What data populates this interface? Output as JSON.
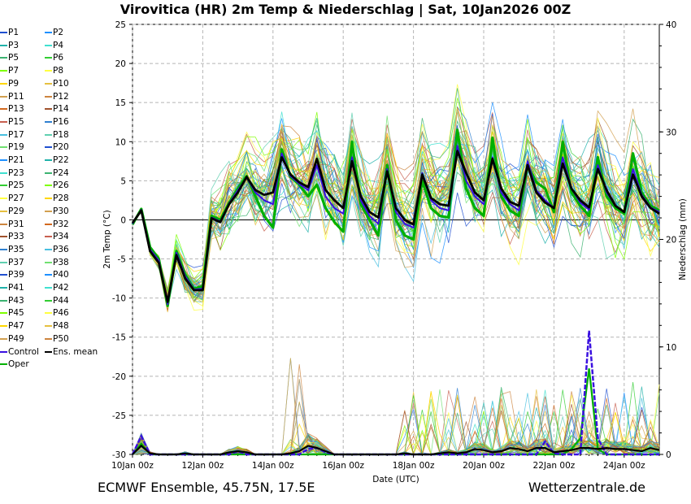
{
  "title": "Virovitica  (HR)  2m Temp & Niederschlag | Sat, 10Jan2026 00Z",
  "footer": {
    "left": "ECMWF Ensemble, 45.75N, 17.5E",
    "right": "Wetterzentrale.de"
  },
  "chart_data": {
    "type": "line",
    "title": "Virovitica  (HR)  2m Temp & Niederschlag | Sat, 10Jan2026 00Z",
    "xlabel": "Date (UTC)",
    "ylabel": "2m Temp (°C)",
    "y2label": "Niederschlag (mm)",
    "ylim": [
      -30,
      25
    ],
    "y2lim": [
      0,
      40
    ],
    "xlim": [
      0,
      360
    ],
    "yticks": [
      "25",
      "20",
      "15",
      "10",
      "5",
      "0",
      "-5",
      "-10",
      "-15",
      "-20",
      "-25",
      "-30"
    ],
    "y2ticks": [
      "40",
      "30",
      "20",
      "10",
      "0"
    ],
    "xticks": [
      "10Jan 00z",
      "12Jan 00z",
      "14Jan 00z",
      "16Jan 00z",
      "18Jan 00z",
      "20Jan 00z",
      "22Jan 00z",
      "24Jan 00z"
    ],
    "x": [
      0,
      6,
      12,
      18,
      24,
      30,
      36,
      42,
      48,
      54,
      60,
      66,
      72,
      78,
      84,
      90,
      96,
      102,
      108,
      114,
      120,
      126,
      132,
      138,
      144,
      150,
      156,
      162,
      168,
      174,
      180,
      186,
      192,
      198,
      204,
      210,
      216,
      222,
      228,
      234,
      240,
      246,
      252,
      258,
      264,
      270,
      276,
      282,
      288,
      294,
      300,
      306,
      312,
      318,
      324,
      330,
      336,
      342,
      348,
      354,
      360
    ],
    "series": [
      {
        "name": "Ens. mean",
        "color": "#000000",
        "values": [
          -0.4,
          1.2,
          -4.0,
          -5.5,
          -10.5,
          -4.5,
          -7.5,
          -9.0,
          -9.0,
          0.2,
          -0.3,
          2.0,
          3.5,
          5.5,
          3.8,
          3.2,
          3.5,
          8.0,
          5.8,
          4.8,
          4.2,
          7.8,
          3.8,
          2.5,
          1.5,
          7.5,
          3.0,
          1.0,
          0.3,
          6.2,
          1.5,
          0.0,
          -0.6,
          5.8,
          2.8,
          2.0,
          1.8,
          8.8,
          6.0,
          3.5,
          2.5,
          7.8,
          4.0,
          2.3,
          1.8,
          7.0,
          3.5,
          2.2,
          1.5,
          7.2,
          4.0,
          2.5,
          1.6,
          6.5,
          3.8,
          1.8,
          1.0,
          5.8,
          3.0,
          1.5,
          0.8
        ]
      },
      {
        "name": "Oper",
        "color": "#00b000",
        "values": [
          -0.6,
          1.4,
          -3.5,
          -5.0,
          -11.0,
          -4.0,
          -7.0,
          -8.8,
          -8.5,
          0.5,
          0.0,
          2.2,
          4.0,
          5.6,
          3.0,
          0.5,
          -1.0,
          9.0,
          5.5,
          4.5,
          3.0,
          4.5,
          1.5,
          -0.3,
          -1.5,
          10.0,
          2.0,
          0.0,
          -2.0,
          7.0,
          0.0,
          -2.0,
          -2.5,
          5.0,
          1.5,
          0.5,
          0.3,
          11.5,
          4.0,
          1.5,
          0.5,
          10.5,
          3.0,
          1.2,
          0.5,
          7.0,
          4.8,
          4.0,
          1.0,
          10.0,
          3.5,
          1.8,
          0.5,
          8.0,
          3.0,
          1.5,
          0.8,
          8.5,
          3.5,
          1.8,
          1.2
        ]
      },
      {
        "name": "Control",
        "color": "#3a10e0",
        "values": [
          -0.5,
          1.3,
          -3.8,
          -5.2,
          -10.8,
          -4.2,
          -7.2,
          -8.9,
          -8.8,
          0.3,
          -0.2,
          2.1,
          3.8,
          5.4,
          3.5,
          2.5,
          2.0,
          8.5,
          5.6,
          4.6,
          3.8,
          7.0,
          3.0,
          1.5,
          0.8,
          8.0,
          2.5,
          0.5,
          -0.5,
          6.5,
          1.0,
          -0.5,
          -1.0,
          6.0,
          2.5,
          1.5,
          1.2,
          9.5,
          5.0,
          3.0,
          2.0,
          8.0,
          3.5,
          2.0,
          1.2,
          7.5,
          3.8,
          2.5,
          1.5,
          8.0,
          4.0,
          2.2,
          1.3,
          7.0,
          3.5,
          1.8,
          1.0,
          6.5,
          3.2,
          1.6,
          1.0
        ]
      }
    ],
    "precip_series": [
      {
        "name": "Ens. mean",
        "color": "#000000",
        "values": [
          0,
          0.8,
          0.1,
          0,
          0,
          0,
          0.1,
          0,
          0,
          0,
          0,
          0.2,
          0.3,
          0.2,
          0,
          0,
          0,
          0,
          0.1,
          0.3,
          0.8,
          0.6,
          0.3,
          0,
          0,
          0,
          0,
          0,
          0,
          0,
          0,
          0.1,
          0,
          0,
          0,
          0.1,
          0.2,
          0.1,
          0.2,
          0.5,
          0.4,
          0.2,
          0.3,
          0.6,
          0.5,
          0.3,
          0.6,
          0.6,
          0.2,
          0.3,
          0.4,
          0.6,
          0.6,
          0.5,
          0.6,
          0.5,
          0.5,
          0.4,
          0.3,
          0.6,
          0.4
        ]
      },
      {
        "name": "Control",
        "color": "#3a10e0",
        "values": [
          0,
          1.7,
          0,
          0,
          0,
          0,
          0,
          0,
          0,
          0,
          0,
          0,
          0.3,
          0,
          0,
          0,
          0,
          0,
          0,
          0,
          0.5,
          0.6,
          0.2,
          0,
          0,
          0,
          0,
          0,
          0,
          0,
          0,
          0,
          0,
          0,
          0,
          0,
          0,
          0,
          0,
          0,
          0,
          0,
          0,
          0,
          0,
          0,
          0,
          1.2,
          0.1,
          0,
          0,
          0,
          11.5,
          1.5,
          0,
          0,
          0,
          0,
          0,
          0,
          0
        ]
      },
      {
        "name": "Oper",
        "color": "#00b000",
        "values": [
          0,
          1.0,
          0,
          0,
          0,
          0,
          0,
          0,
          0,
          0,
          0,
          0,
          0,
          0,
          0,
          0,
          0,
          0,
          0,
          0,
          0,
          0,
          0,
          0,
          0,
          0,
          0,
          0,
          0,
          0,
          0,
          0,
          0,
          0,
          0,
          0,
          0,
          0,
          0,
          0,
          0,
          0,
          0,
          0,
          0,
          0,
          0,
          0,
          0,
          0,
          0.5,
          1.5,
          8.0,
          0.5,
          0,
          0,
          0,
          0,
          0,
          0,
          0
        ]
      }
    ],
    "legend": [
      "P1",
      "P2",
      "P3",
      "P4",
      "P5",
      "P6",
      "P7",
      "P8",
      "P9",
      "P10",
      "P11",
      "P12",
      "P13",
      "P14",
      "P15",
      "P16",
      "P17",
      "P18",
      "P19",
      "P20",
      "P21",
      "P22",
      "P23",
      "P24",
      "P25",
      "P26",
      "P27",
      "P28",
      "P29",
      "P30",
      "P31",
      "P32",
      "P33",
      "P34",
      "P35",
      "P36",
      "P37",
      "P38",
      "P39",
      "P40",
      "P41",
      "P42",
      "P43",
      "P44",
      "P45",
      "P46",
      "P47",
      "P48",
      "P49",
      "P50",
      "Control",
      "Ens. mean",
      "Oper"
    ],
    "legend_position": "left",
    "grid": true
  }
}
